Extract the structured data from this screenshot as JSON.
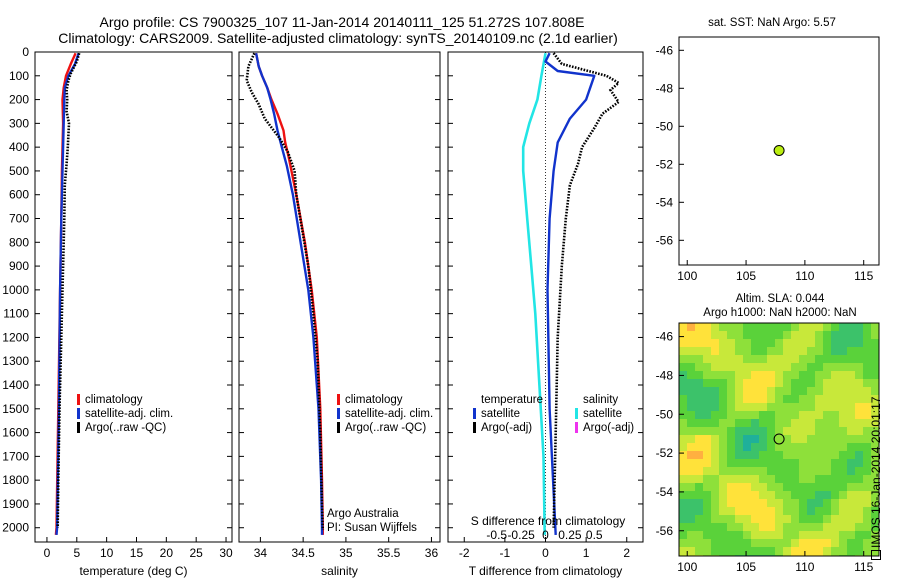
{
  "figure": {
    "title_line1": "Argo profile: CS 7900325_107 11-Jan-2014 20140111_125 51.272S 107.808E",
    "title_line2": "Climatology: CARS2009. Satellite-adjusted climatology: synTS_20140109.nc (2.1d earlier)",
    "stamp": "IMOS 16-Jan-2014 20:01:17"
  },
  "colors": {
    "climatology": "#ee1111",
    "satellite": "#1133cc",
    "argo": "#000000",
    "salinity_satellite": "#22e5e5",
    "salinity_argo": "#ee33ee",
    "float_marker": "#bbee11"
  },
  "depth_ticks": [
    "0",
    "100",
    "200",
    "300",
    "400",
    "500",
    "600",
    "700",
    "800",
    "900",
    "1000",
    "1100",
    "1200",
    "1300",
    "1400",
    "1500",
    "1600",
    "1700",
    "1800",
    "1900",
    "2000"
  ],
  "chart_data": [
    {
      "id": "temperature",
      "type": "line",
      "xlabel": "temperature (deg C)",
      "ylabel": "",
      "xlim": [
        -2,
        31
      ],
      "ylim": [
        2060,
        0
      ],
      "xticks": [
        0,
        5,
        10,
        15,
        20,
        25,
        30
      ],
      "xtick_labels": [
        "0",
        "5",
        "10",
        "15",
        "20",
        "25",
        "30"
      ],
      "legend": [
        "climatology",
        "satellite-adj. clim.",
        "Argo(..raw -QC)"
      ],
      "legend_position": "lower-right",
      "series": [
        {
          "name": "climatology",
          "color": "climatology",
          "points": [
            [
              4.8,
              5
            ],
            [
              4.0,
              50
            ],
            [
              3.2,
              100
            ],
            [
              2.8,
              150
            ],
            [
              2.6,
              200
            ],
            [
              2.7,
              300
            ],
            [
              2.6,
              400
            ],
            [
              2.5,
              500
            ],
            [
              2.4,
              700
            ],
            [
              2.2,
              1000
            ],
            [
              1.9,
              1500
            ],
            [
              1.6,
              2000
            ],
            [
              1.5,
              2030
            ]
          ]
        },
        {
          "name": "satellite-adj. clim.",
          "color": "satellite",
          "points": [
            [
              5.3,
              5
            ],
            [
              4.7,
              50
            ],
            [
              3.6,
              100
            ],
            [
              3.0,
              150
            ],
            [
              2.9,
              200
            ],
            [
              2.8,
              300
            ],
            [
              2.7,
              400
            ],
            [
              2.6,
              500
            ],
            [
              2.4,
              700
            ],
            [
              2.2,
              1000
            ],
            [
              2.0,
              1500
            ],
            [
              1.7,
              2000
            ],
            [
              1.6,
              2030
            ]
          ]
        },
        {
          "name": "Argo(..raw -QC)",
          "color": "argo",
          "points": [
            [
              5.4,
              5
            ],
            [
              5.0,
              40
            ],
            [
              4.0,
              90
            ],
            [
              3.6,
              120
            ],
            [
              3.3,
              160
            ],
            [
              3.4,
              200
            ],
            [
              3.3,
              250
            ],
            [
              3.7,
              300
            ],
            [
              3.5,
              400
            ],
            [
              3.3,
              470
            ],
            [
              3.0,
              560
            ],
            [
              2.9,
              700
            ],
            [
              2.7,
              900
            ],
            [
              2.4,
              1200
            ],
            [
              2.1,
              1500
            ],
            [
              1.9,
              1800
            ],
            [
              1.8,
              2000
            ]
          ]
        }
      ]
    },
    {
      "id": "salinity",
      "type": "line",
      "xlabel": "salinity",
      "ylabel": "",
      "xlim": [
        33.75,
        36.1
      ],
      "ylim": [
        2060,
        0
      ],
      "xticks": [
        34,
        34.5,
        35,
        35.5,
        36
      ],
      "xtick_labels": [
        "34",
        "34.5",
        "35",
        "35.5",
        "36"
      ],
      "legend": [
        "climatology",
        "satellite-adj. clim.",
        "Argo(..raw -QC)"
      ],
      "legend_position": "lower-right",
      "annotation": [
        "Argo Australia",
        "PI: Susan Wijffels"
      ],
      "series": [
        {
          "name": "climatology",
          "color": "climatology",
          "points": [
            [
              33.95,
              5
            ],
            [
              33.98,
              60
            ],
            [
              34.02,
              100
            ],
            [
              34.08,
              150
            ],
            [
              34.13,
              200
            ],
            [
              34.2,
              260
            ],
            [
              34.27,
              330
            ],
            [
              34.29,
              380
            ],
            [
              34.33,
              440
            ],
            [
              34.42,
              600
            ],
            [
              34.52,
              800
            ],
            [
              34.6,
              1000
            ],
            [
              34.66,
              1200
            ],
            [
              34.7,
              1500
            ],
            [
              34.72,
              1800
            ],
            [
              34.73,
              2000
            ],
            [
              34.73,
              2030
            ]
          ]
        },
        {
          "name": "satellite-adj. clim.",
          "color": "satellite",
          "points": [
            [
              33.95,
              5
            ],
            [
              33.98,
              60
            ],
            [
              34.02,
              100
            ],
            [
              34.08,
              150
            ],
            [
              34.12,
              200
            ],
            [
              34.16,
              260
            ],
            [
              34.2,
              330
            ],
            [
              34.25,
              400
            ],
            [
              34.31,
              480
            ],
            [
              34.38,
              600
            ],
            [
              34.47,
              800
            ],
            [
              34.56,
              1000
            ],
            [
              34.62,
              1200
            ],
            [
              34.68,
              1500
            ],
            [
              34.71,
              1800
            ],
            [
              34.72,
              2000
            ],
            [
              34.72,
              2030
            ]
          ]
        },
        {
          "name": "Argo(..raw -QC)",
          "color": "argo",
          "points": [
            [
              33.93,
              5
            ],
            [
              33.86,
              60
            ],
            [
              33.84,
              120
            ],
            [
              33.9,
              170
            ],
            [
              33.98,
              220
            ],
            [
              34.05,
              280
            ],
            [
              34.22,
              360
            ],
            [
              34.32,
              420
            ],
            [
              34.4,
              500
            ],
            [
              34.42,
              600
            ],
            [
              34.49,
              750
            ],
            [
              34.56,
              900
            ],
            [
              34.62,
              1100
            ],
            [
              34.67,
              1300
            ],
            [
              34.7,
              1600
            ],
            [
              34.72,
              1900
            ],
            [
              34.73,
              2010
            ]
          ]
        }
      ]
    },
    {
      "id": "difference",
      "type": "line",
      "xlabel": "T difference from climatology",
      "ylabel": "",
      "top_xlabel": "S difference from climatology",
      "xlim": [
        -2.4,
        2.4
      ],
      "ylim": [
        2060,
        0
      ],
      "xticks": [
        -2,
        -1,
        0,
        1,
        2
      ],
      "xtick_labels": [
        "-2",
        "-1",
        "0",
        "1",
        "2"
      ],
      "top_xticks": [
        -0.5,
        -0.25,
        0,
        0.25,
        0.5
      ],
      "top_xtick_labels": [
        "-0.5",
        "-0.25",
        "0",
        "0.25",
        "0.5"
      ],
      "legend": {
        "temperature": {
          "heading": "temperature",
          "items": [
            "satellite",
            "Argo(-adj)"
          ]
        },
        "salinity": {
          "heading": "salinity",
          "items": [
            "satellite",
            "Argo(-adj)"
          ]
        }
      },
      "legend_position": "lower",
      "series": [
        {
          "name": "temperature satellite",
          "color": "satellite",
          "points": [
            [
              0.1,
              5
            ],
            [
              0.0,
              40
            ],
            [
              0.3,
              80
            ],
            [
              1.2,
              100
            ],
            [
              1.1,
              150
            ],
            [
              1.0,
              200
            ],
            [
              0.6,
              280
            ],
            [
              0.3,
              380
            ],
            [
              0.2,
              500
            ],
            [
              0.1,
              700
            ],
            [
              0.05,
              1000
            ],
            [
              0.1,
              1500
            ],
            [
              0.25,
              2030
            ]
          ]
        },
        {
          "name": "temperature Argo(-adj)",
          "color": "argo",
          "points": [
            [
              0.2,
              5
            ],
            [
              0.4,
              50
            ],
            [
              1.5,
              100
            ],
            [
              1.8,
              130
            ],
            [
              1.6,
              160
            ],
            [
              1.8,
              210
            ],
            [
              1.4,
              260
            ],
            [
              1.2,
              320
            ],
            [
              0.9,
              400
            ],
            [
              0.8,
              470
            ],
            [
              0.6,
              560
            ],
            [
              0.5,
              700
            ],
            [
              0.4,
              900
            ],
            [
              0.3,
              1200
            ],
            [
              0.25,
              1600
            ],
            [
              0.2,
              2000
            ]
          ]
        },
        {
          "name": "salinity satellite",
          "color": "salinity_satellite",
          "points": [
            [
              0.0,
              5
            ],
            [
              -0.1,
              100
            ],
            [
              -0.2,
              200
            ],
            [
              -0.4,
              300
            ],
            [
              -0.55,
              400
            ],
            [
              -0.55,
              500
            ],
            [
              -0.45,
              700
            ],
            [
              -0.35,
              900
            ],
            [
              -0.25,
              1100
            ],
            [
              -0.15,
              1400
            ],
            [
              -0.05,
              1700
            ],
            [
              -0.02,
              2030
            ]
          ]
        }
      ]
    },
    {
      "id": "sst-map",
      "type": "scatter",
      "title": "sat. SST: NaN Argo: 5.57",
      "xlabel": "",
      "ylabel": "",
      "xlim": [
        99.3,
        116.3
      ],
      "ylim": [
        -57.3,
        -45.3
      ],
      "xticks": [
        100,
        105,
        110,
        115
      ],
      "xtick_labels": [
        "100",
        "105",
        "110",
        "115"
      ],
      "yticks": [
        -46,
        -48,
        -50,
        -52,
        -54,
        -56
      ],
      "ytick_labels": [
        "-46",
        "-48",
        "-50",
        "-52",
        "-54",
        "-56"
      ],
      "points": [
        {
          "x": 107.808,
          "y": -51.272
        }
      ]
    },
    {
      "id": "sla-map",
      "type": "heatmap",
      "title_line1": "Altim. SLA: 0.044",
      "title_line2": "Argo h1000: NaN h2000: NaN",
      "xlabel": "",
      "ylabel": "",
      "xlim": [
        99.3,
        116.3
      ],
      "ylim": [
        -57.3,
        -45.3
      ],
      "xticks": [
        100,
        105,
        110,
        115
      ],
      "xtick_labels": [
        "100",
        "105",
        "110",
        "115"
      ],
      "yticks": [
        -46,
        -48,
        -50,
        -52,
        -54,
        -56
      ],
      "ytick_labels": [
        "-46",
        "-48",
        "-50",
        "-52",
        "-54",
        "-56"
      ],
      "points": [
        {
          "x": 107.808,
          "y": -51.272
        }
      ],
      "palette": [
        "#1fb09a",
        "#3cc26a",
        "#5ad23a",
        "#8ee03a",
        "#c8e83a",
        "#ffe23a",
        "#ffb040"
      ]
    }
  ]
}
